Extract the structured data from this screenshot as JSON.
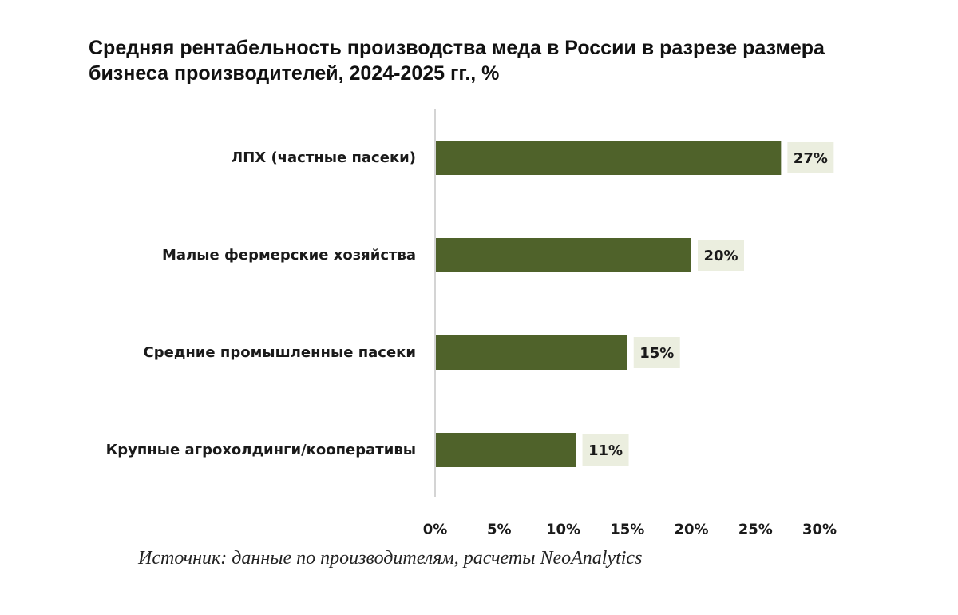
{
  "title_lines": [
    "Средняя рентабельность производства меда в России в разрезе размера",
    "бизнеса производителей, 2024-2025 гг., %"
  ],
  "source": "Источник: данные по производителям, расчеты NeoAnalytics",
  "colors": {
    "bar": "#4f622a",
    "label_bg": "#ebeedf",
    "axis": "#d4d4d4",
    "text": "#1a1a1a"
  },
  "chart_data": {
    "type": "bar",
    "orientation": "horizontal",
    "categories": [
      "ЛПХ (частные пасеки)",
      "Малые фермерские хозяйства",
      "Средние промышленные пасеки",
      "Крупные агрохолдинги/кооперативы"
    ],
    "values": [
      27,
      20,
      15,
      11
    ],
    "data_labels": [
      "27%",
      "20%",
      "15%",
      "11%"
    ],
    "xlim": [
      0,
      30
    ],
    "xticks": [
      0,
      5,
      10,
      15,
      20,
      25,
      30
    ],
    "xtick_labels": [
      "0%",
      "5%",
      "10%",
      "15%",
      "20%",
      "25%",
      "30%"
    ],
    "grid": false,
    "legend": "none"
  }
}
